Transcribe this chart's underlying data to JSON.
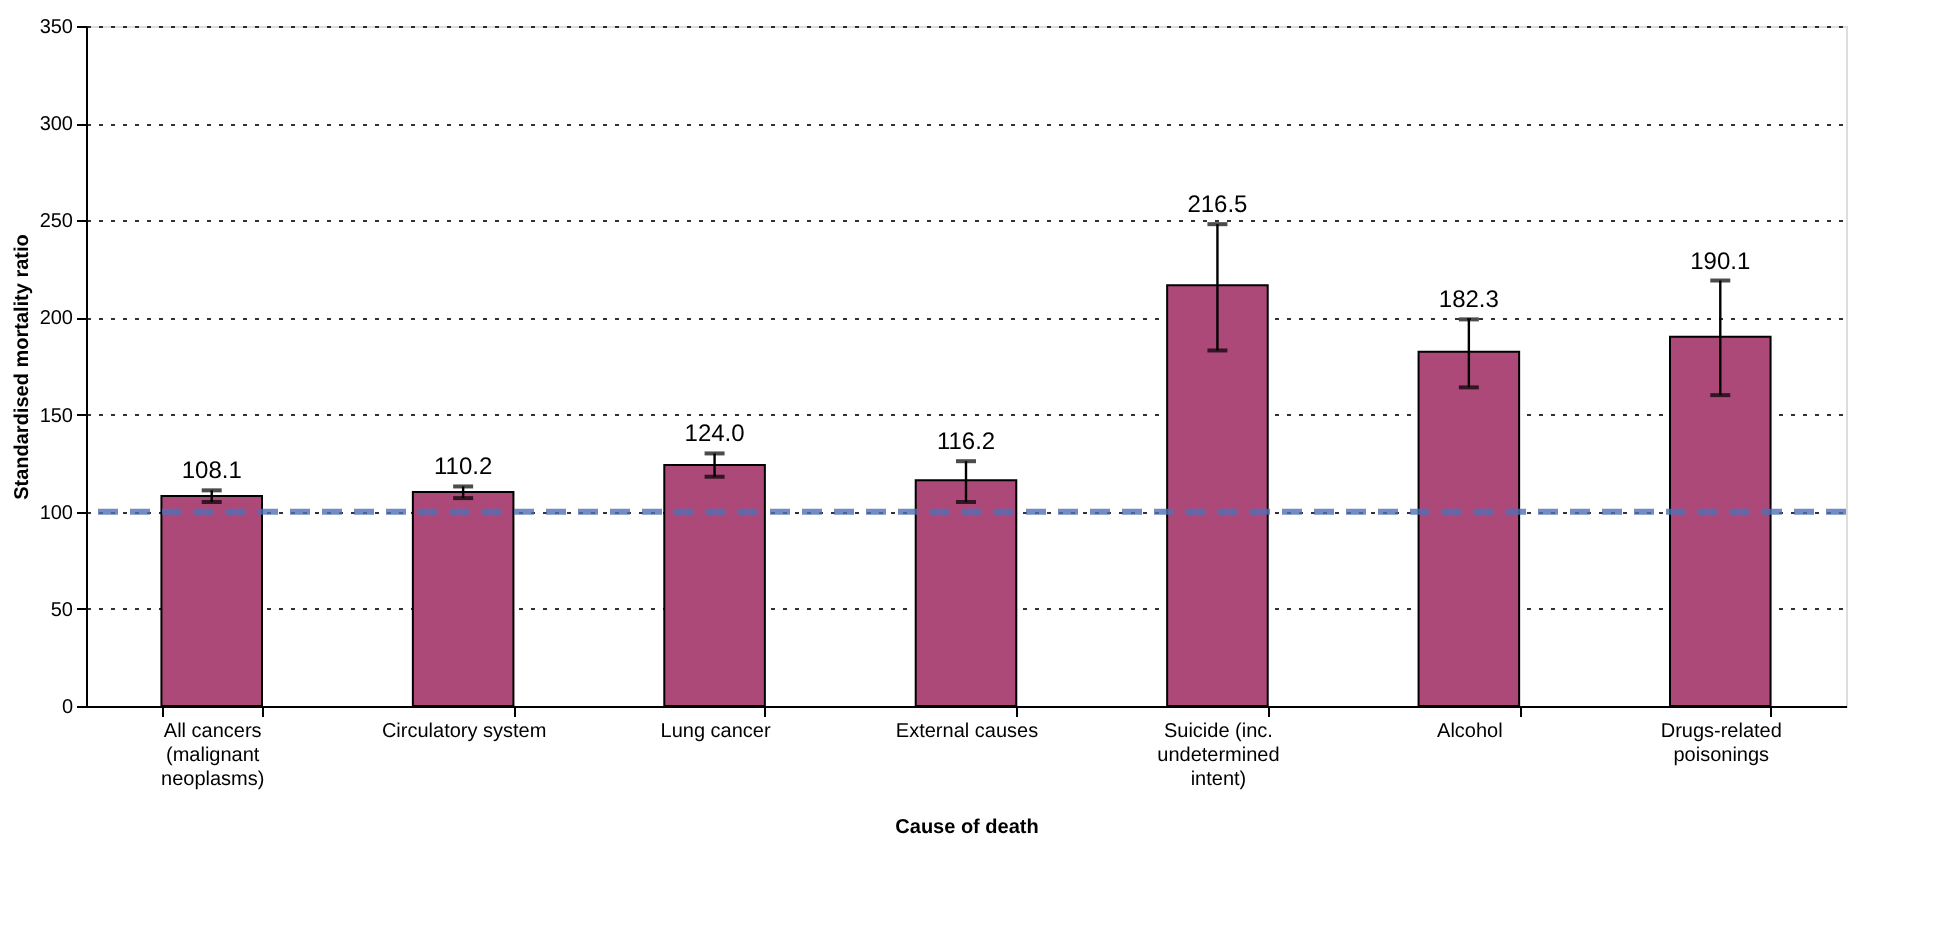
{
  "chart_data": {
    "type": "bar",
    "xlabel": "Cause of death",
    "ylabel": "Standardised mortality ratio",
    "categories": [
      "All cancers (malignant neoplasms)",
      "Circulatory system",
      "Lung cancer",
      "External causes",
      "Suicide (inc. undetermined intent)",
      "Alcohol",
      "Drugs-related poisonings"
    ],
    "values": [
      108.1,
      110.2,
      124.0,
      116.2,
      216.5,
      182.3,
      190.1
    ],
    "errors": [
      [
        105,
        111
      ],
      [
        107,
        113
      ],
      [
        118,
        130
      ],
      [
        105,
        126
      ],
      [
        183,
        248
      ],
      [
        164,
        199
      ],
      [
        160,
        219
      ]
    ],
    "color": "#ad4979",
    "value_labels": [
      "108.1",
      "110.2",
      "124.0",
      "116.2",
      "216.5",
      "182.3",
      "190.1"
    ],
    "ylim": [
      0,
      350
    ],
    "yticks": [
      0,
      50,
      100,
      150,
      200,
      250,
      300,
      350
    ],
    "grid": "y",
    "ref_lines": [
      {
        "axis": "y",
        "value": 100,
        "color": "#4f6fb5",
        "line_style": "dashed"
      }
    ]
  }
}
